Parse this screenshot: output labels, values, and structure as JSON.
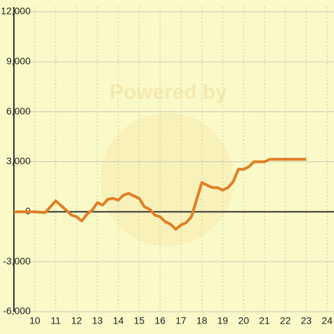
{
  "chart_data": {
    "type": "line",
    "watermark": "Powered by",
    "x": [
      9,
      10,
      10.5,
      11,
      11.5,
      11.75,
      12,
      12.25,
      12.5,
      12.75,
      13,
      13.25,
      13.5,
      13.75,
      14,
      14.25,
      14.5,
      14.75,
      15,
      15.25,
      15.5,
      15.75,
      16,
      16.25,
      16.5,
      16.75,
      17,
      17.25,
      17.5,
      18,
      18.25,
      18.5,
      18.75,
      19,
      19.25,
      19.5,
      19.75,
      20,
      20.25,
      20.5,
      20.75,
      21,
      21.25,
      23
    ],
    "values": [
      0,
      0,
      -50,
      650,
      100,
      -200,
      -300,
      -550,
      -150,
      100,
      550,
      400,
      750,
      800,
      700,
      1000,
      1100,
      950,
      800,
      300,
      150,
      -200,
      -300,
      -600,
      -750,
      -1050,
      -800,
      -650,
      -300,
      1750,
      1600,
      1450,
      1450,
      1300,
      1450,
      1800,
      2550,
      2550,
      2700,
      3000,
      3000,
      3000,
      3150,
      3150
    ],
    "color": "#e07f25",
    "xlim": [
      9,
      24.33
    ],
    "xticks": [
      10,
      11,
      12,
      13,
      14,
      15,
      16,
      17,
      18,
      19,
      20,
      21,
      22,
      23,
      24
    ],
    "ylim": [
      -6000,
      12000
    ],
    "yticks": [
      {
        "value": -6000,
        "label": "-6,000"
      },
      {
        "value": -3000,
        "label": "-3,000"
      },
      0,
      {
        "value": 3000,
        "label": "3,000"
      },
      {
        "value": 6000,
        "label": "6,000"
      },
      {
        "value": 9000,
        "label": "9,000"
      },
      {
        "value": 12000,
        "label": "12,000"
      }
    ],
    "grid": true
  }
}
